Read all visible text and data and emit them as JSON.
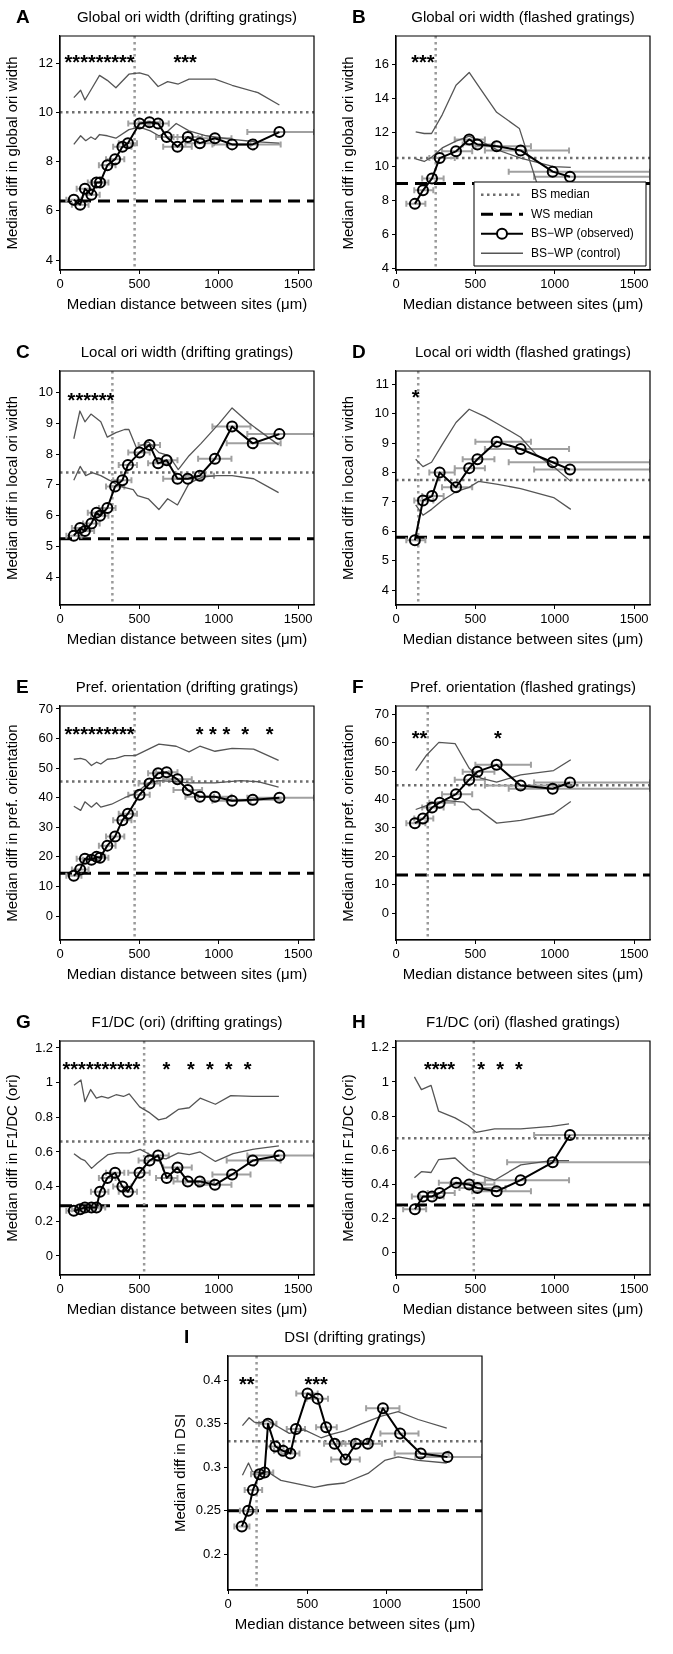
{
  "chart_data": [
    {
      "type": "line",
      "title": "Global ori width (drifting gratings)",
      "xlabel": "Median distance between sites (μm)",
      "ylabel": "Median diff in global ori width",
      "xlim": [
        0,
        1600
      ],
      "xticks": [
        0,
        500,
        1000,
        1500
      ],
      "ylim": [
        3.6,
        13.1
      ],
      "yticks": [
        4,
        6,
        8,
        10,
        12
      ],
      "annotations": [
        "A",
        "*********       ***"
      ],
      "ref_lines": [
        {
          "axis": "y",
          "value": 10,
          "color": "#6e6e6e",
          "line_style": "dotted"
        },
        {
          "axis": "y",
          "value": 6.4,
          "color": "#000000",
          "line_style": "dashed"
        },
        {
          "axis": "x",
          "value": 470,
          "color": "#9a9a9a",
          "line_style": "dotted"
        }
      ],
      "series": [
        {
          "color": "#000000",
          "marker": "circle",
          "x": [
            87,
            127,
            157,
            198,
            230,
            252,
            298,
            347,
            393,
            428,
            501,
            564,
            618,
            672,
            740,
            805,
            881,
            976,
            1084,
            1214,
            1382
          ],
          "values": [
            6.45,
            6.25,
            6.9,
            6.65,
            7.15,
            7.15,
            7.85,
            8.1,
            8.6,
            8.75,
            9.55,
            9.6,
            9.55,
            9.0,
            8.6,
            9.0,
            8.75,
            8.95,
            8.7,
            8.7,
            9.2
          ],
          "xerrors": [
            [
              40,
              135
            ],
            [
              75,
              180
            ],
            [
              105,
              215
            ],
            [
              145,
              250
            ],
            [
              175,
              285
            ],
            [
              195,
              305
            ],
            [
              245,
              350
            ],
            [
              290,
              405
            ],
            [
              335,
              450
            ],
            [
              370,
              485
            ],
            [
              430,
              565
            ],
            [
              495,
              630
            ],
            [
              555,
              685
            ],
            [
              605,
              740
            ],
            [
              650,
              830
            ],
            [
              715,
              895
            ],
            [
              790,
              970
            ],
            [
              870,
              1080
            ],
            [
              960,
              1200
            ],
            [
              1050,
              1390
            ],
            [
              1180,
              1600
            ]
          ]
        },
        {
          "color": "#555555",
          "marker": "none",
          "x": [
            87,
            130,
            157,
            203,
            249,
            298,
            352,
            434,
            501,
            556,
            618,
            678,
            745,
            813,
            976,
            1084,
            1247,
            1382
          ],
          "values": [
            10.6,
            10.9,
            10.5,
            11.0,
            11.5,
            11.3,
            11.0,
            11.55,
            11.6,
            11.5,
            11.05,
            11.25,
            11.15,
            11.35,
            11.35,
            11.1,
            10.8,
            10.3
          ]
        },
        {
          "color": "#555555",
          "marker": "none",
          "x": [
            87,
            130,
            162,
            195,
            222,
            249,
            298,
            352,
            434,
            501,
            569,
            623,
            664,
            732,
            813,
            921,
            1084,
            1247,
            1382
          ],
          "values": [
            8.7,
            9.05,
            8.85,
            9.0,
            8.9,
            9.1,
            9.05,
            8.95,
            9.3,
            9.4,
            9.25,
            9.05,
            9.15,
            9.55,
            9.25,
            9.05,
            8.9,
            8.8,
            8.75
          ]
        }
      ]
    },
    {
      "type": "line",
      "title": "Global ori width (flashed gratings)",
      "xlabel": "Median distance between sites (μm)",
      "ylabel": "Median diff in global ori width",
      "xlim": [
        0,
        1600
      ],
      "xticks": [
        0,
        500,
        1000,
        1500
      ],
      "ylim": [
        3.9,
        17.7
      ],
      "yticks": [
        4,
        6,
        8,
        10,
        12,
        14,
        16
      ],
      "legend": "bottom right",
      "annotations": [
        "B",
        "***"
      ],
      "ref_lines": [
        {
          "axis": "y",
          "value": 10.5,
          "label": "BS median",
          "color": "#6e6e6e",
          "line_style": "dotted"
        },
        {
          "axis": "y",
          "value": 9,
          "label": "WS median",
          "color": "#000000",
          "line_style": "dashed"
        },
        {
          "axis": "x",
          "value": 250,
          "color": "#9a9a9a",
          "line_style": "dotted"
        }
      ],
      "series": [
        {
          "name": "BS−WP (observed)",
          "color": "#000000",
          "marker": "circle",
          "x": [
            119,
            170,
            227,
            275,
            378,
            461,
            513,
            634,
            785,
            987,
            1096
          ],
          "values": [
            7.8,
            8.6,
            9.3,
            10.5,
            10.9,
            11.6,
            11.3,
            11.2,
            10.95,
            9.7,
            9.4
          ],
          "xerrors": [
            [
              65,
              185
            ],
            [
              115,
              235
            ],
            [
              165,
              300
            ],
            [
              210,
              370
            ],
            [
              290,
              480
            ],
            [
              370,
              560
            ],
            [
              420,
              620
            ],
            [
              500,
              850
            ],
            [
              560,
              1090
            ],
            [
              710,
              1600
            ],
            [
              870,
              1600
            ]
          ]
        },
        {
          "name": "BS−WP (control)",
          "color": "#555555",
          "marker": "none",
          "x": [
            124,
            178,
            224,
            291,
            378,
            461,
            534,
            634,
            777,
            885
          ],
          "values": [
            12.05,
            11.95,
            11.95,
            13.05,
            14.8,
            15.55,
            14.55,
            13.2,
            12.25,
            9.1
          ]
        },
        {
          "color": "#555555",
          "marker": "none",
          "x": [
            124,
            178,
            224,
            291,
            378,
            461,
            534,
            634,
            785,
            993,
            1101
          ],
          "values": [
            10.45,
            10.3,
            10.55,
            11.1,
            11.5,
            11.8,
            11.5,
            11.0,
            10.5,
            10.0,
            9.95
          ]
        }
      ]
    },
    {
      "type": "line",
      "title": "Local ori width (drifting gratings)",
      "xlabel": "Median distance between sites (μm)",
      "ylabel": "Median diff in local ori width",
      "xlim": [
        0,
        1600
      ],
      "xticks": [
        0,
        500,
        1000,
        1500
      ],
      "ylim": [
        3.1,
        10.7
      ],
      "yticks": [
        4,
        5,
        6,
        7,
        8,
        9,
        10
      ],
      "annotations": [
        "C",
        "******"
      ],
      "ref_lines": [
        {
          "axis": "y",
          "value": 7.4,
          "color": "#6e6e6e",
          "line_style": "dotted"
        },
        {
          "axis": "y",
          "value": 5.25,
          "color": "#000000",
          "line_style": "dashed"
        },
        {
          "axis": "x",
          "value": 330,
          "color": "#9a9a9a",
          "line_style": "dotted"
        }
      ],
      "series": [
        {
          "color": "#000000",
          "marker": "circle",
          "x": [
            87,
            127,
            157,
            198,
            230,
            252,
            298,
            347,
            393,
            428,
            501,
            564,
            618,
            672,
            740,
            805,
            881,
            976,
            1084,
            1214,
            1382
          ],
          "values": [
            5.35,
            5.6,
            5.5,
            5.75,
            6.1,
            6.0,
            6.25,
            6.95,
            7.15,
            7.65,
            8.05,
            8.3,
            7.7,
            7.8,
            7.2,
            7.2,
            7.3,
            7.85,
            8.9,
            8.35,
            8.65
          ],
          "xerrors": [
            [
              40,
              135
            ],
            [
              75,
              180
            ],
            [
              105,
              215
            ],
            [
              145,
              250
            ],
            [
              175,
              285
            ],
            [
              195,
              305
            ],
            [
              245,
              350
            ],
            [
              290,
              405
            ],
            [
              335,
              450
            ],
            [
              370,
              485
            ],
            [
              430,
              565
            ],
            [
              495,
              630
            ],
            [
              555,
              685
            ],
            [
              605,
              740
            ],
            [
              650,
              830
            ],
            [
              715,
              895
            ],
            [
              790,
              970
            ],
            [
              870,
              1080
            ],
            [
              960,
              1200
            ],
            [
              1050,
              1390
            ],
            [
              1180,
              1600
            ]
          ]
        },
        {
          "color": "#555555",
          "marker": "none",
          "x": [
            87,
            125,
            157,
            195,
            257,
            298,
            352,
            407,
            434,
            482,
            556,
            623,
            686,
            745,
            813,
            889,
            1003,
            1084,
            1192,
            1377
          ],
          "values": [
            8.5,
            9.4,
            9.05,
            9.3,
            9.05,
            8.55,
            8.7,
            8.8,
            8.8,
            8.2,
            8.4,
            8.05,
            7.95,
            7.5,
            7.95,
            8.35,
            9.0,
            9.5,
            9.0,
            8.3
          ]
        },
        {
          "color": "#555555",
          "marker": "none",
          "x": [
            87,
            127,
            162,
            203,
            257,
            312,
            379,
            461,
            488,
            556,
            623,
            678,
            740,
            813,
            894,
            989,
            1084,
            1220,
            1377
          ],
          "values": [
            7.15,
            7.6,
            7.3,
            7.4,
            7.3,
            7.15,
            6.95,
            6.85,
            6.65,
            6.55,
            6.2,
            6.55,
            6.35,
            7.05,
            7.25,
            7.3,
            7.3,
            7.2,
            6.75
          ]
        }
      ]
    },
    {
      "type": "line",
      "title": "Local ori width (flashed gratings)",
      "xlabel": "Median distance between sites (μm)",
      "ylabel": "Median diff in local ori width",
      "xlim": [
        0,
        1600
      ],
      "xticks": [
        0,
        500,
        1000,
        1500
      ],
      "ylim": [
        3.5,
        11.45
      ],
      "yticks": [
        4,
        5,
        6,
        7,
        8,
        9,
        10,
        11
      ],
      "annotations": [
        "D",
        "*"
      ],
      "ref_lines": [
        {
          "axis": "y",
          "value": 7.75,
          "color": "#6e6e6e",
          "line_style": "dotted"
        },
        {
          "axis": "y",
          "value": 5.8,
          "color": "#000000",
          "line_style": "dashed"
        },
        {
          "axis": "x",
          "value": 140,
          "color": "#9a9a9a",
          "line_style": "dotted"
        }
      ],
      "series": [
        {
          "color": "#000000",
          "marker": "circle",
          "x": [
            119,
            170,
            227,
            275,
            378,
            461,
            513,
            634,
            785,
            987,
            1096
          ],
          "values": [
            5.7,
            7.05,
            7.2,
            8.0,
            7.5,
            8.15,
            8.45,
            9.05,
            8.8,
            8.35,
            8.1
          ],
          "xerrors": [
            [
              65,
              185
            ],
            [
              115,
              235
            ],
            [
              165,
              300
            ],
            [
              210,
              370
            ],
            [
              290,
              480
            ],
            [
              370,
              560
            ],
            [
              420,
              620
            ],
            [
              500,
              850
            ],
            [
              560,
              1090
            ],
            [
              710,
              1600
            ],
            [
              870,
              1600
            ]
          ]
        },
        {
          "color": "#555555",
          "marker": "none",
          "x": [
            124,
            170,
            224,
            291,
            378,
            461,
            561,
            642,
            785,
            885,
            993,
            1101
          ],
          "values": [
            8.45,
            8.2,
            8.35,
            8.95,
            9.7,
            10.15,
            9.9,
            9.65,
            9.2,
            8.6,
            8.2,
            7.7
          ]
        },
        {
          "color": "#555555",
          "marker": "none",
          "x": [
            124,
            170,
            224,
            291,
            378,
            461,
            521,
            642,
            785,
            993,
            1101
          ],
          "values": [
            6.9,
            6.55,
            6.75,
            7.05,
            7.35,
            7.5,
            7.7,
            7.6,
            7.45,
            7.15,
            6.75
          ]
        }
      ]
    },
    {
      "type": "line",
      "title": "Pref. orientation (drifting gratings)",
      "xlabel": "Median distance between sites (μm)",
      "ylabel": "Median diff in pref. orientation",
      "xlim": [
        0,
        1600
      ],
      "xticks": [
        0,
        500,
        1000,
        1500
      ],
      "ylim": [
        -8.1,
        71
      ],
      "yticks": [
        0,
        10,
        20,
        30,
        40,
        50,
        60,
        70
      ],
      "annotations": [
        "E",
        "*********           * * *  *   *"
      ],
      "ref_lines": [
        {
          "axis": "y",
          "value": 45.5,
          "color": "#6e6e6e",
          "line_style": "dotted"
        },
        {
          "axis": "y",
          "value": 14.5,
          "color": "#000000",
          "line_style": "dashed"
        },
        {
          "axis": "x",
          "value": 470,
          "color": "#9a9a9a",
          "line_style": "dotted"
        }
      ],
      "series": [
        {
          "color": "#000000",
          "marker": "circle",
          "x": [
            87,
            127,
            157,
            198,
            230,
            252,
            298,
            347,
            393,
            428,
            501,
            564,
            618,
            672,
            740,
            805,
            881,
            976,
            1084,
            1214,
            1382
          ],
          "values": [
            13.6,
            15.7,
            19.4,
            19,
            20,
            19.7,
            23.8,
            26.9,
            32.4,
            34.6,
            41,
            44.8,
            48.3,
            48.6,
            46.2,
            42.6,
            40.3,
            40.3,
            39,
            39.3,
            40
          ],
          "xerrors": [
            [
              40,
              135
            ],
            [
              75,
              180
            ],
            [
              105,
              215
            ],
            [
              145,
              250
            ],
            [
              175,
              285
            ],
            [
              195,
              305
            ],
            [
              245,
              350
            ],
            [
              290,
              405
            ],
            [
              335,
              450
            ],
            [
              370,
              485
            ],
            [
              430,
              565
            ],
            [
              495,
              630
            ],
            [
              555,
              685
            ],
            [
              605,
              740
            ],
            [
              650,
              830
            ],
            [
              715,
              895
            ],
            [
              790,
              970
            ],
            [
              870,
              1080
            ],
            [
              960,
              1200
            ],
            [
              1050,
              1390
            ],
            [
              1180,
              1600
            ]
          ]
        },
        {
          "color": "#555555",
          "marker": "none",
          "x": [
            87,
            130,
            162,
            198,
            230,
            257,
            298,
            352,
            407,
            474,
            623,
            732,
            813,
            881,
            976,
            1084,
            1220,
            1377
          ],
          "values": [
            53,
            53.3,
            52.8,
            50.9,
            52,
            51.4,
            53,
            53.3,
            54.2,
            54.2,
            58.1,
            57.4,
            55.5,
            57.4,
            55.7,
            56.7,
            56.4,
            52.6
          ]
        },
        {
          "color": "#555555",
          "marker": "none",
          "x": [
            87,
            130,
            157,
            198,
            230,
            257,
            325,
            407,
            474,
            556,
            623,
            705,
            813,
            976,
            1138,
            1247,
            1377
          ],
          "values": [
            37.1,
            35.7,
            38.6,
            36.8,
            38.3,
            36.8,
            37.8,
            40,
            41.4,
            45,
            45.8,
            45.5,
            45,
            45,
            45.8,
            45.4,
            43.6
          ]
        }
      ]
    },
    {
      "type": "line",
      "title": "Pref. orientation (flashed gratings)",
      "xlabel": "Median distance between sites (μm)",
      "ylabel": "Median diff in pref. orientation",
      "xlim": [
        0,
        1600
      ],
      "xticks": [
        0,
        500,
        1000,
        1500
      ],
      "ylim": [
        -9.4,
        72.9
      ],
      "yticks": [
        0,
        10,
        20,
        30,
        40,
        50,
        60,
        70
      ],
      "annotations": [
        "F",
        "**            *"
      ],
      "ref_lines": [
        {
          "axis": "y",
          "value": 45,
          "color": "#6e6e6e",
          "line_style": "dotted"
        },
        {
          "axis": "y",
          "value": 13.5,
          "color": "#000000",
          "line_style": "dashed"
        },
        {
          "axis": "x",
          "value": 200,
          "color": "#9a9a9a",
          "line_style": "dotted"
        }
      ],
      "series": [
        {
          "color": "#000000",
          "marker": "circle",
          "x": [
            119,
            170,
            227,
            275,
            378,
            461,
            513,
            634,
            785,
            987,
            1096
          ],
          "values": [
            31.7,
            33.3,
            37.2,
            38.9,
            41.9,
            47,
            49.8,
            52.2,
            44.9,
            43.8,
            46
          ],
          "xerrors": [
            [
              65,
              185
            ],
            [
              115,
              235
            ],
            [
              165,
              300
            ],
            [
              210,
              370
            ],
            [
              290,
              480
            ],
            [
              370,
              560
            ],
            [
              420,
              620
            ],
            [
              500,
              850
            ],
            [
              560,
              1090
            ],
            [
              710,
              1600
            ],
            [
              870,
              1600
            ]
          ]
        },
        {
          "color": "#555555",
          "marker": "none",
          "x": [
            124,
            192,
            270,
            372,
            461,
            534,
            634,
            785,
            993,
            1101
          ],
          "values": [
            50.2,
            55.6,
            60.1,
            59.7,
            51,
            47.5,
            46.1,
            48.7,
            50.2,
            54
          ]
        },
        {
          "color": "#555555",
          "marker": "none",
          "x": [
            124,
            183,
            237,
            318,
            426,
            480,
            521,
            634,
            785,
            993,
            1101
          ],
          "values": [
            36.5,
            37.7,
            38.8,
            39.6,
            39.1,
            36.5,
            36.5,
            31.7,
            32.7,
            35,
            39.3
          ]
        }
      ]
    },
    {
      "type": "line",
      "title": "F1/DC (ori) (drifting gratings)",
      "xlabel": "Median distance between sites (μm)",
      "ylabel": "Median diff in F1/DC (ori)",
      "xlim": [
        0,
        1600
      ],
      "xticks": [
        0,
        500,
        1000,
        1500
      ],
      "ylim": [
        -0.11,
        1.24
      ],
      "yticks": [
        0,
        0.2,
        0.4,
        0.6,
        0.8,
        1,
        1.2
      ],
      "annotations": [
        "G",
        "**********    *   *  *  *  *"
      ],
      "ref_lines": [
        {
          "axis": "y",
          "value": 0.66,
          "color": "#6e6e6e",
          "line_style": "dotted"
        },
        {
          "axis": "y",
          "value": 0.29,
          "color": "#000000",
          "line_style": "dashed"
        },
        {
          "axis": "x",
          "value": 530,
          "color": "#9a9a9a",
          "line_style": "dotted"
        }
      ],
      "series": [
        {
          "color": "#000000",
          "marker": "circle",
          "x": [
            87,
            127,
            157,
            198,
            230,
            252,
            298,
            347,
            393,
            428,
            501,
            564,
            618,
            672,
            740,
            805,
            881,
            976,
            1084,
            1214,
            1382
          ],
          "values": [
            0.26,
            0.27,
            0.28,
            0.28,
            0.28,
            0.37,
            0.45,
            0.48,
            0.4,
            0.37,
            0.48,
            0.55,
            0.58,
            0.45,
            0.51,
            0.43,
            0.43,
            0.41,
            0.47,
            0.55,
            0.58
          ],
          "xerrors": [
            [
              40,
              135
            ],
            [
              75,
              180
            ],
            [
              105,
              215
            ],
            [
              145,
              250
            ],
            [
              175,
              285
            ],
            [
              195,
              305
            ],
            [
              245,
              350
            ],
            [
              290,
              405
            ],
            [
              335,
              450
            ],
            [
              370,
              485
            ],
            [
              430,
              565
            ],
            [
              495,
              630
            ],
            [
              555,
              685
            ],
            [
              605,
              740
            ],
            [
              650,
              830
            ],
            [
              715,
              895
            ],
            [
              790,
              970
            ],
            [
              870,
              1080
            ],
            [
              960,
              1200
            ],
            [
              1050,
              1390
            ],
            [
              1180,
              1600
            ]
          ]
        },
        {
          "color": "#555555",
          "marker": "none",
          "x": [
            88,
            132,
            157,
            193,
            229,
            262,
            303,
            353,
            400,
            436,
            502,
            566,
            621,
            668,
            745,
            814,
            883,
            979,
            1076,
            1214,
            1379
          ],
          "values": [
            0.985,
            1.015,
            0.89,
            0.96,
            0.91,
            0.92,
            0.91,
            0.93,
            0.92,
            0.935,
            0.86,
            0.825,
            0.785,
            0.795,
            0.845,
            0.855,
            0.91,
            0.875,
            0.925,
            0.92,
            0.92
          ]
        },
        {
          "color": "#555555",
          "marker": "none",
          "x": [
            88,
            132,
            157,
            199,
            234,
            303,
            359,
            436,
            505,
            566,
            635,
            668,
            745,
            814,
            883,
            979,
            1090,
            1214,
            1379
          ],
          "values": [
            0.59,
            0.56,
            0.55,
            0.505,
            0.535,
            0.585,
            0.595,
            0.595,
            0.615,
            0.585,
            0.565,
            0.56,
            0.595,
            0.585,
            0.6,
            0.545,
            0.59,
            0.615,
            0.635
          ]
        }
      ]
    },
    {
      "type": "line",
      "title": "F1/DC (ori) (flashed gratings)",
      "xlabel": "Median distance between sites (μm)",
      "ylabel": "Median diff in F1/DC (ori)",
      "xlim": [
        0,
        1600
      ],
      "xticks": [
        0,
        500,
        1000,
        1500
      ],
      "ylim": [
        -0.13,
        1.24
      ],
      "yticks": [
        0,
        0.2,
        0.4,
        0.6,
        0.8,
        1,
        1.2
      ],
      "annotations": [
        "H",
        "****    *  *  *"
      ],
      "ref_lines": [
        {
          "axis": "y",
          "value": 0.67,
          "color": "#6e6e6e",
          "line_style": "dotted"
        },
        {
          "axis": "y",
          "value": 0.28,
          "color": "#000000",
          "line_style": "dashed"
        },
        {
          "axis": "x",
          "value": 490,
          "color": "#9a9a9a",
          "line_style": "dotted"
        }
      ],
      "series": [
        {
          "color": "#000000",
          "marker": "circle",
          "x": [
            119,
            170,
            227,
            275,
            378,
            461,
            513,
            634,
            785,
            987,
            1096
          ],
          "values": [
            0.255,
            0.33,
            0.33,
            0.35,
            0.41,
            0.4,
            0.38,
            0.36,
            0.425,
            0.53,
            0.69
          ],
          "xerrors": [
            [
              45,
              190
            ],
            [
              100,
              240
            ],
            [
              150,
              300
            ],
            [
              200,
              370
            ],
            [
              270,
              560
            ],
            [
              340,
              620
            ],
            [
              400,
              690
            ],
            [
              480,
              850
            ],
            [
              560,
              1090
            ],
            [
              700,
              1600
            ],
            [
              870,
              1600
            ]
          ]
        },
        {
          "color": "#555555",
          "marker": "none",
          "x": [
            116,
            160,
            221,
            268,
            372,
            455,
            505,
            621,
            786,
            979,
            1090
          ],
          "values": [
            1.03,
            0.955,
            0.98,
            0.83,
            0.79,
            0.745,
            0.705,
            0.725,
            0.725,
            0.74,
            0.755
          ]
        },
        {
          "color": "#555555",
          "marker": "none",
          "x": [
            116,
            160,
            221,
            268,
            372,
            455,
            505,
            621,
            786,
            979,
            1090
          ],
          "values": [
            0.44,
            0.475,
            0.47,
            0.545,
            0.555,
            0.485,
            0.46,
            0.425,
            0.515,
            0.54,
            0.54
          ]
        }
      ]
    },
    {
      "type": "line",
      "title": "DSI (drifting gratings)",
      "xlabel": "Median distance between sites (μm)",
      "ylabel": "Median diff in DSI",
      "xlim": [
        0,
        1600
      ],
      "xticks": [
        0,
        500,
        1000,
        1500
      ],
      "ylim": [
        0.159,
        0.428
      ],
      "yticks": [
        0.2,
        0.25,
        0.3,
        0.35,
        0.4
      ],
      "annotations": [
        "I",
        "**         ***"
      ],
      "ref_lines": [
        {
          "axis": "y",
          "value": 0.33,
          "color": "#6e6e6e",
          "line_style": "dotted"
        },
        {
          "axis": "y",
          "value": 0.25,
          "color": "#000000",
          "line_style": "dashed"
        },
        {
          "axis": "x",
          "value": 180,
          "color": "#9a9a9a",
          "line_style": "dotted"
        }
      ],
      "series": [
        {
          "color": "#000000",
          "marker": "circle",
          "x": [
            87,
            127,
            157,
            198,
            230,
            252,
            298,
            347,
            393,
            428,
            501,
            564,
            618,
            672,
            740,
            805,
            881,
            976,
            1084,
            1214,
            1382
          ],
          "values": [
            0.232,
            0.25,
            0.274,
            0.292,
            0.294,
            0.35,
            0.324,
            0.319,
            0.316,
            0.344,
            0.385,
            0.379,
            0.346,
            0.327,
            0.309,
            0.327,
            0.327,
            0.368,
            0.339,
            0.316,
            0.312
          ],
          "xerrors": [
            [
              40,
              135
            ],
            [
              75,
              180
            ],
            [
              105,
              215
            ],
            [
              145,
              250
            ],
            [
              175,
              285
            ],
            [
              195,
              305
            ],
            [
              245,
              350
            ],
            [
              290,
              405
            ],
            [
              335,
              450
            ],
            [
              370,
              485
            ],
            [
              430,
              565
            ],
            [
              495,
              630
            ],
            [
              555,
              685
            ],
            [
              605,
              740
            ],
            [
              650,
              830
            ],
            [
              715,
              895
            ],
            [
              790,
              970
            ],
            [
              870,
              1080
            ],
            [
              960,
              1200
            ],
            [
              1050,
              1390
            ],
            [
              1180,
              1600
            ]
          ]
        },
        {
          "color": "#555555",
          "marker": "none",
          "x": [
            91,
            133,
            165,
            196,
            249,
            312,
            386,
            481,
            586,
            650,
            734,
            840,
            966,
            1072,
            1198,
            1378
          ],
          "values": [
            0.348,
            0.357,
            0.352,
            0.351,
            0.354,
            0.347,
            0.339,
            0.343,
            0.334,
            0.338,
            0.342,
            0.35,
            0.359,
            0.364,
            0.355,
            0.345
          ]
        },
        {
          "color": "#555555",
          "marker": "none",
          "x": [
            91,
            129,
            154,
            207,
            249,
            333,
            439,
            544,
            629,
            734,
            882,
            987,
            1072,
            1198,
            1378
          ],
          "values": [
            0.291,
            0.305,
            0.295,
            0.294,
            0.295,
            0.285,
            0.281,
            0.277,
            0.28,
            0.282,
            0.293,
            0.308,
            0.312,
            0.308,
            0.305
          ]
        }
      ]
    }
  ]
}
